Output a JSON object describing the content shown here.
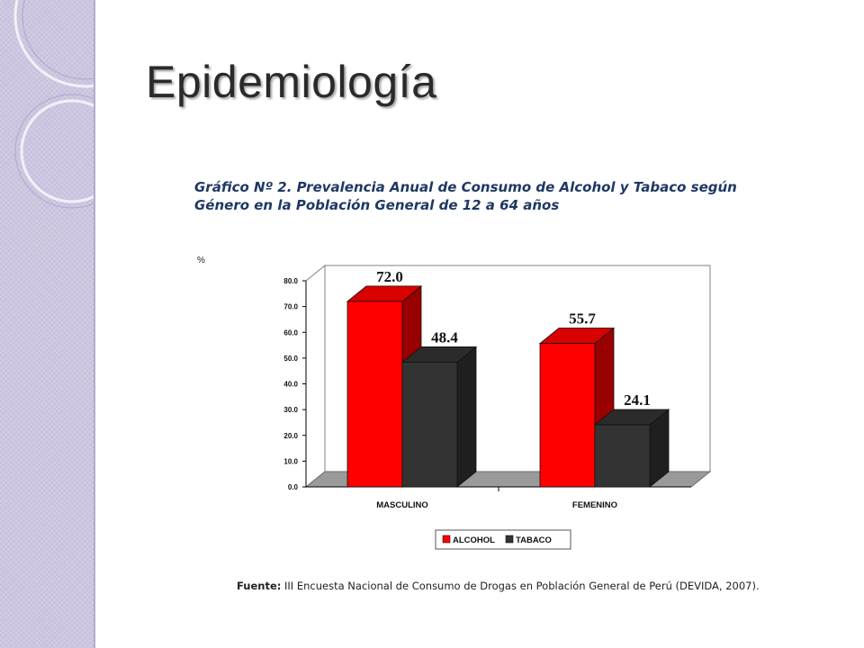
{
  "slide": {
    "title": "Epidemiología"
  },
  "colors": {
    "sidebar": "#c9c0dd",
    "title_text": "#2a2a2a",
    "chart_title_text": "#1f3864",
    "alcohol": "#ff0000",
    "tabaco": "#333333"
  },
  "chart_data": {
    "type": "bar",
    "title": "Gráfico Nº 2.  Prevalencia Anual de Consumo de Alcohol y Tabaco según Género en la Población General de 12 a 64 años",
    "ylabel": "%",
    "xlabel": "",
    "categories": [
      "MASCULINO",
      "FEMENINO"
    ],
    "series": [
      {
        "name": "ALCOHOL",
        "values": [
          72.0,
          55.7
        ],
        "color": "#ff0000"
      },
      {
        "name": "TABACO",
        "values": [
          48.4,
          24.1
        ],
        "color": "#333333"
      }
    ],
    "ylim": [
      0,
      80
    ],
    "yticks": [
      "0.0",
      "10.0",
      "20.0",
      "30.0",
      "40.0",
      "50.0",
      "60.0",
      "70.0",
      "80.0"
    ],
    "data_labels": [
      [
        "72.0",
        "55.7"
      ],
      [
        "48.4",
        "24.1"
      ]
    ],
    "legend_position": "bottom",
    "style": "3d-column",
    "grid": false
  },
  "footer": {
    "source_label": "Fuente:",
    "source_text": "III Encuesta Nacional de Consumo de Drogas en Población General de Perú (DEVIDA, 2007)."
  }
}
